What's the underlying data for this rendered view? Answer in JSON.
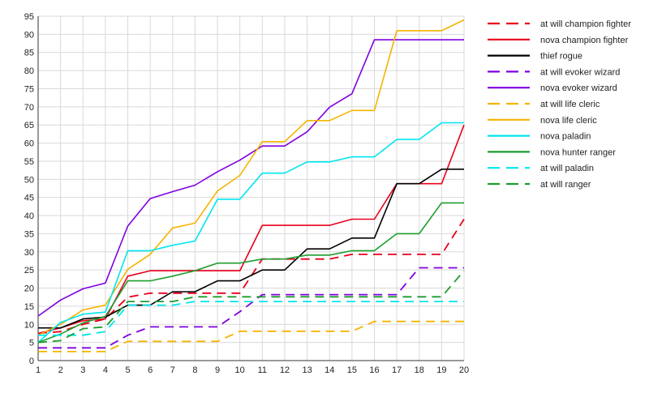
{
  "chart_data": {
    "type": "line",
    "title": "",
    "xlabel": "",
    "ylabel": "",
    "x": [
      1,
      2,
      3,
      4,
      5,
      6,
      7,
      8,
      9,
      10,
      11,
      12,
      13,
      14,
      15,
      16,
      17,
      18,
      19,
      20
    ],
    "x_ticks": [
      "1",
      "2",
      "3",
      "4",
      "5",
      "6",
      "7",
      "8",
      "9",
      "10",
      "11",
      "12",
      "13",
      "14",
      "15",
      "16",
      "17",
      "18",
      "19",
      "20"
    ],
    "ylim": [
      0,
      95
    ],
    "y_ticks": [
      "0",
      "5",
      "10",
      "15",
      "20",
      "25",
      "30",
      "35",
      "40",
      "45",
      "50",
      "55",
      "60",
      "65",
      "70",
      "75",
      "80",
      "85",
      "90",
      "95"
    ],
    "grid": true,
    "legend_position": "right",
    "series": [
      {
        "name": "at will champion fighter",
        "color": "#e8001c",
        "dashed": true,
        "values": [
          7.5,
          8,
          10,
          11.5,
          17.5,
          18.6,
          18.6,
          18.6,
          18.6,
          18.6,
          28,
          28,
          28,
          28,
          29.3,
          29.3,
          29.3,
          29.3,
          29.3,
          39
        ]
      },
      {
        "name": "nova champion fighter",
        "color": "#e8001c",
        "dashed": false,
        "values": [
          7.5,
          9,
          11,
          11.5,
          23.3,
          24.8,
          24.8,
          24.8,
          24.8,
          24.8,
          37.3,
          37.3,
          37.3,
          37.3,
          39,
          39,
          48.8,
          48.8,
          48.8,
          65
        ]
      },
      {
        "name": "thief rogue",
        "color": "#000000",
        "dashed": false,
        "values": [
          9,
          9,
          11.5,
          12,
          15.3,
          15.3,
          19,
          19,
          22,
          22,
          25,
          25,
          30.8,
          30.8,
          33.8,
          33.8,
          48.8,
          48.8,
          52.8,
          52.8
        ]
      },
      {
        "name": "at will evoker wizard",
        "color": "#8000e0",
        "dashed": true,
        "values": [
          3.5,
          3.5,
          3.5,
          3.5,
          7,
          9.3,
          9.3,
          9.3,
          9.3,
          13.5,
          18.2,
          18.2,
          18.2,
          18.2,
          18.2,
          18.2,
          18.2,
          25.6,
          25.6,
          25.6
        ]
      },
      {
        "name": "nova evoker wizard",
        "color": "#8000e0",
        "dashed": false,
        "values": [
          12.3,
          16.7,
          19.8,
          21.4,
          37.1,
          44.7,
          46.6,
          48.4,
          52.1,
          55.3,
          59.2,
          59.2,
          63.1,
          69.9,
          73.6,
          88.5,
          88.5,
          88.5,
          88.5,
          88.5
        ]
      },
      {
        "name": "at will life cleric",
        "color": "#f5b400",
        "dashed": true,
        "values": [
          2.5,
          2.5,
          2.5,
          2.5,
          5.3,
          5.3,
          5.3,
          5.3,
          5.3,
          8.1,
          8.1,
          8.1,
          8.1,
          8.1,
          8.1,
          10.8,
          10.8,
          10.8,
          10.8,
          10.8
        ]
      },
      {
        "name": "nova life cleric",
        "color": "#f5b400",
        "dashed": false,
        "values": [
          7,
          10,
          14,
          15.3,
          25.2,
          29.3,
          36.6,
          37.9,
          46.8,
          51.1,
          60.4,
          60.4,
          66.2,
          66.2,
          69,
          69,
          91,
          91,
          91,
          94
        ]
      },
      {
        "name": "nova paladin",
        "color": "#00e5ee",
        "dashed": false,
        "values": [
          5,
          10.5,
          12.8,
          13.4,
          30.3,
          30.3,
          31.8,
          33,
          44.5,
          44.5,
          51.7,
          51.7,
          54.8,
          54.8,
          56.2,
          56.2,
          61,
          61,
          65.6,
          65.6
        ]
      },
      {
        "name": "nova hunter ranger",
        "color": "#1c9e2e",
        "dashed": false,
        "values": [
          5,
          7.3,
          10.4,
          12.2,
          22,
          22,
          23.3,
          24.8,
          26.9,
          26.9,
          28,
          28,
          29.1,
          29.1,
          30.3,
          30.3,
          35,
          35,
          43.5,
          43.5
        ]
      },
      {
        "name": "at will paladin",
        "color": "#00e5ee",
        "dashed": true,
        "values": [
          7,
          7,
          7,
          8,
          15.3,
          15.3,
          15.3,
          16.3,
          16.3,
          16.3,
          16.3,
          16.3,
          16.3,
          16.3,
          16.3,
          16.3,
          16.3,
          16.3,
          16.3,
          16.3
        ]
      },
      {
        "name": "at will ranger",
        "color": "#1c9e2e",
        "dashed": true,
        "values": [
          5,
          5.5,
          8.8,
          9.3,
          16.3,
          16.3,
          16.3,
          17.6,
          17.6,
          17.6,
          17.6,
          17.6,
          17.6,
          17.6,
          17.6,
          17.6,
          17.6,
          17.6,
          17.6,
          24.8
        ]
      }
    ]
  }
}
